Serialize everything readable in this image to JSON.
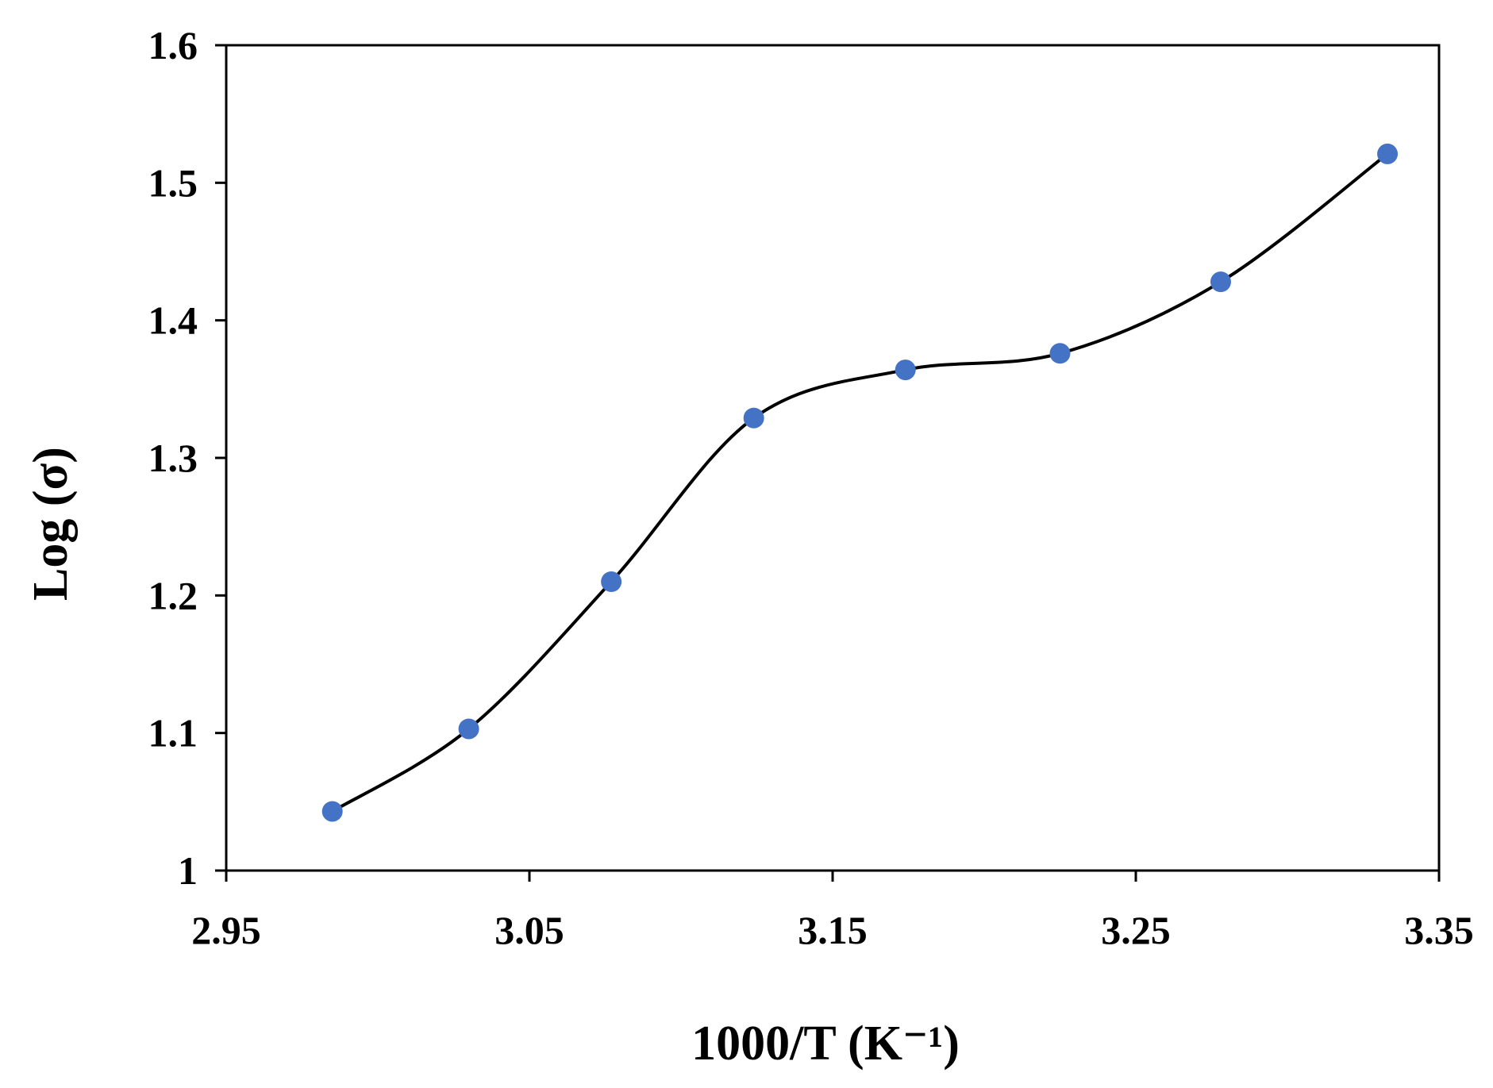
{
  "chart_data": {
    "type": "scatter",
    "title": "",
    "xlabel": "1000/T (K⁻¹)",
    "ylabel": "Log (σ)",
    "xlim": [
      2.95,
      3.35
    ],
    "ylim": [
      1.0,
      1.6
    ],
    "xticks": [
      "2.95",
      "3.05",
      "3.15",
      "3.25",
      "3.35"
    ],
    "yticks": [
      "1",
      "1.1",
      "1.2",
      "1.3",
      "1.4",
      "1.5",
      "1.6"
    ],
    "grid": false,
    "legend": "none",
    "series": [
      {
        "x": [
          2.985,
          3.03,
          3.077,
          3.124,
          3.174,
          3.225,
          3.278,
          3.333
        ],
        "y": [
          1.043,
          1.103,
          1.21,
          1.329,
          1.364,
          1.376,
          1.428,
          1.521
        ],
        "marker_color": "#4472C4",
        "line_color": "#000000",
        "line_style": "smooth"
      }
    ]
  }
}
